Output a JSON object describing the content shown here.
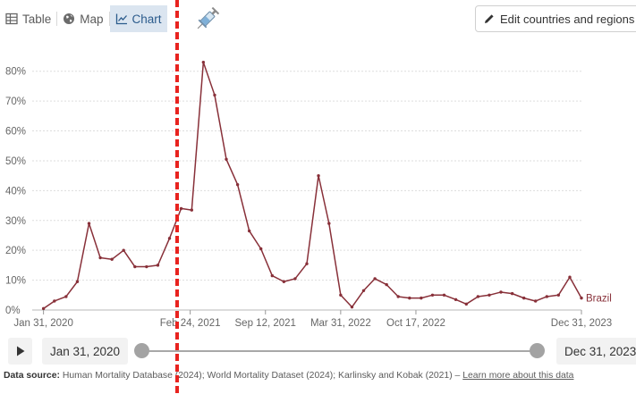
{
  "toolbar": {
    "tabs": [
      {
        "label": "Table",
        "icon": "table-icon"
      },
      {
        "label": "Map",
        "icon": "globe-icon"
      },
      {
        "label": "Chart",
        "icon": "line-chart-icon",
        "active": true
      }
    ],
    "syringe_icon": "syringe-icon",
    "edit_button_label": "Edit countries and regions"
  },
  "chart_data": {
    "type": "line",
    "title": "",
    "xlabel": "",
    "ylabel": "",
    "ylim": [
      0,
      85
    ],
    "xlim": [
      "2020-01-01",
      "2023-12-31"
    ],
    "y_ticks": [
      "0%",
      "10%",
      "20%",
      "30%",
      "40%",
      "50%",
      "60%",
      "70%",
      "80%"
    ],
    "x_ticks": [
      "Jan 31, 2020",
      "Feb 24, 2021",
      "Sep 12, 2021",
      "Mar 31, 2022",
      "Oct 17, 2022",
      "Dec 31, 2023"
    ],
    "grid": true,
    "series": [
      {
        "name": "Brazil",
        "color": "#883039",
        "x": [
          "2020-01-31",
          "2020-02-29",
          "2020-03-31",
          "2020-04-30",
          "2020-05-31",
          "2020-06-30",
          "2020-07-31",
          "2020-08-31",
          "2020-09-30",
          "2020-10-31",
          "2020-11-30",
          "2020-12-31",
          "2021-01-31",
          "2021-02-28",
          "2021-03-31",
          "2021-04-30",
          "2021-05-31",
          "2021-06-30",
          "2021-07-31",
          "2021-08-31",
          "2021-09-30",
          "2021-10-31",
          "2021-11-30",
          "2021-12-31",
          "2022-01-31",
          "2022-02-28",
          "2022-03-31",
          "2022-04-30",
          "2022-05-31",
          "2022-06-30",
          "2022-07-31",
          "2022-08-31",
          "2022-09-30",
          "2022-10-31",
          "2022-11-30",
          "2022-12-31",
          "2023-01-31",
          "2023-02-28",
          "2023-03-31",
          "2023-04-30",
          "2023-05-31",
          "2023-06-30",
          "2023-07-31",
          "2023-08-31",
          "2023-09-30",
          "2023-10-31",
          "2023-11-30",
          "2023-12-31"
        ],
        "values": [
          0.5,
          3,
          4.5,
          9.5,
          29,
          17.5,
          17,
          20,
          14.5,
          14.5,
          15,
          24,
          34,
          33.5,
          83,
          72,
          50.5,
          42,
          26.5,
          20.5,
          11.5,
          9.5,
          10.5,
          15.5,
          45,
          29,
          5,
          1,
          6.5,
          10.5,
          8.5,
          4.5,
          4,
          4,
          5,
          5,
          3.5,
          2,
          4.5,
          5,
          6,
          5.5,
          4,
          3,
          4.5,
          5,
          11,
          4
        ]
      }
    ]
  },
  "timeline": {
    "play_icon": "play-icon",
    "start_label": "Jan 31, 2020",
    "end_label": "Dec 31, 2023"
  },
  "source": {
    "prefix": "Data source:",
    "text": " Human Mortality Database (2024); World Mortality Dataset (2024); Karlinsky and Kobak (2021) – ",
    "link": "Learn more about this data"
  }
}
